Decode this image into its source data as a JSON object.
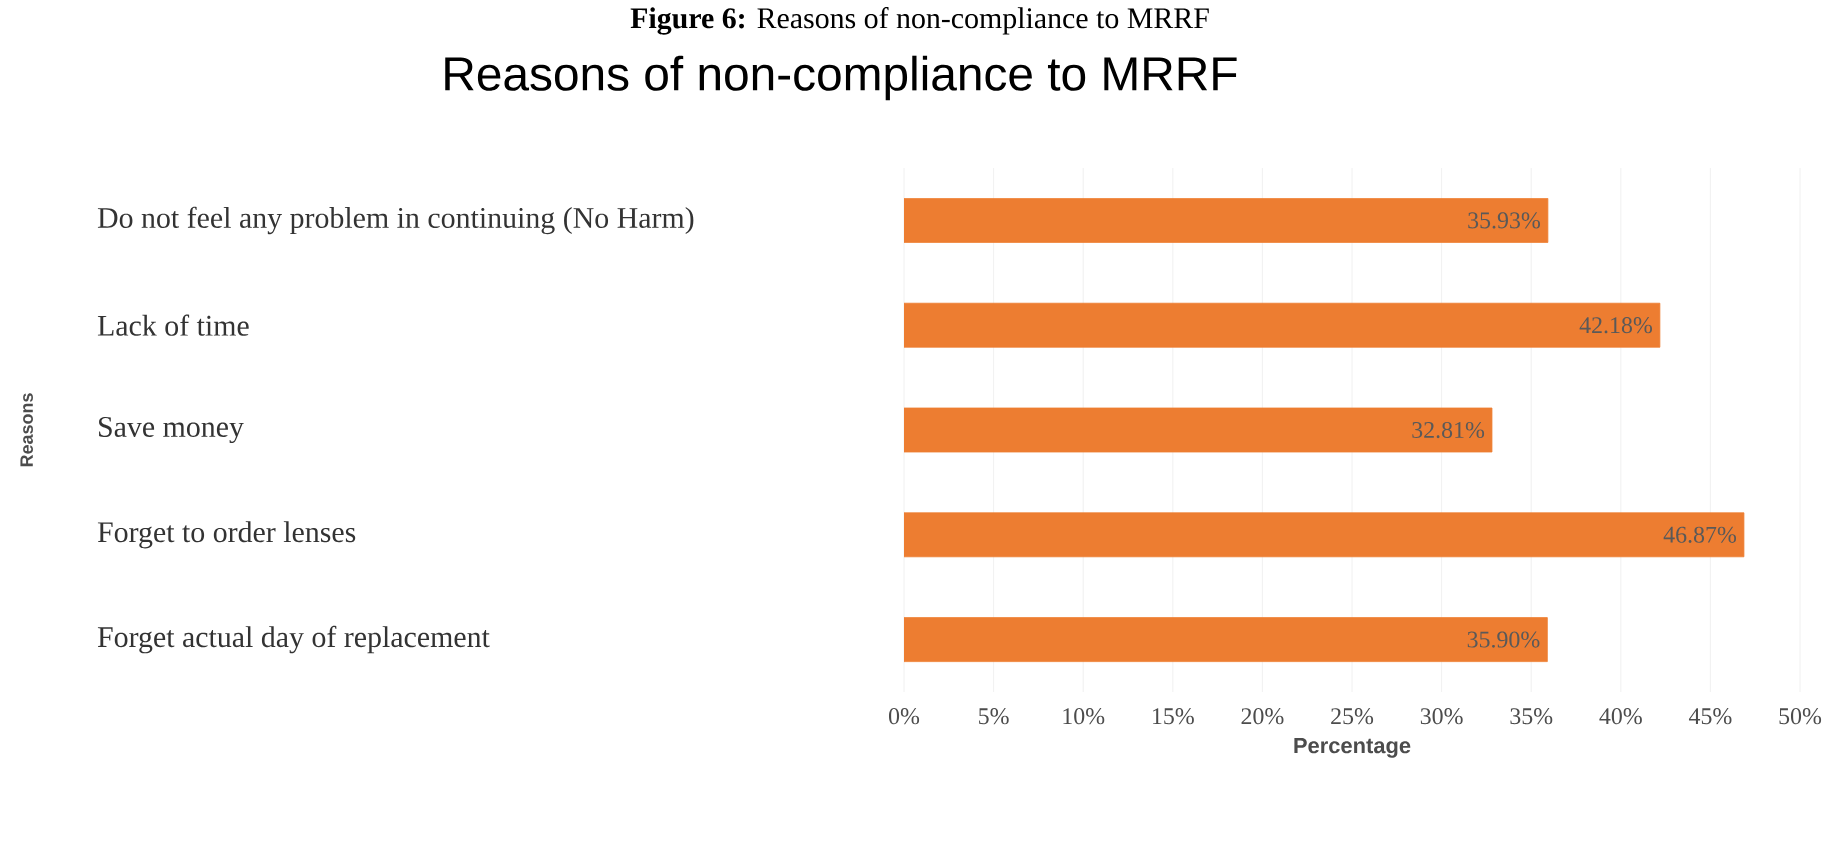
{
  "chart_data": {
    "type": "bar",
    "orientation": "horizontal",
    "title": "Reasons of non-compliance to MRRF",
    "xlabel": "Percentage",
    "ylabel": "Reasons",
    "annotations": [
      "**Figure 6:** Reasons of non-compliance to MRRF"
    ],
    "categories": [
      "Do not feel any problem in continuing (No Harm)",
      "Lack of time",
      "Save money",
      "Forget to order lenses",
      "Forget actual day of replacement"
    ],
    "values": [
      35.93,
      42.18,
      32.81,
      46.87,
      35.9
    ],
    "value_labels": [
      "35.93%",
      "42.18%",
      "32.81%",
      "46.87%",
      "35.90%"
    ],
    "color": "#ed7d31",
    "xlim": [
      0,
      50
    ],
    "xticks": [
      {
        "value": 0,
        "label": "0%"
      },
      {
        "value": 5,
        "label": "5%"
      },
      {
        "value": 10,
        "label": "10%"
      },
      {
        "value": 15,
        "label": "15%"
      },
      {
        "value": 20,
        "label": "20%"
      },
      {
        "value": 25,
        "label": "25%"
      },
      {
        "value": 30,
        "label": "30%"
      },
      {
        "value": 35,
        "label": "35%"
      },
      {
        "value": 40,
        "label": "40%"
      },
      {
        "value": 45,
        "label": "45%"
      },
      {
        "value": 50,
        "label": "50%"
      }
    ],
    "grid": "x"
  }
}
